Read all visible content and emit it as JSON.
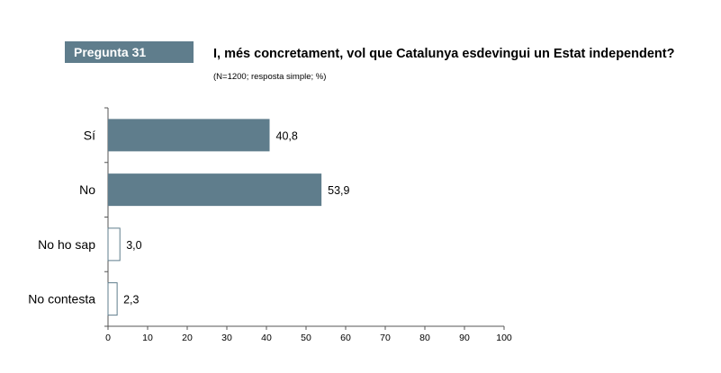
{
  "header": {
    "badge": "Pregunta 31",
    "question": "I, més concretament, vol que Catalunya esdevingui un Estat independent?",
    "note": "(N=1200; resposta simple; %)"
  },
  "colors": {
    "filled_bar": "#5f7d8c",
    "empty_bar_stroke": "#5f7d8c",
    "axis": "#555555"
  },
  "chart_data": {
    "type": "bar",
    "orientation": "horizontal",
    "categories": [
      "Sí",
      "No",
      "No ho sap",
      "No contesta"
    ],
    "values": [
      40.8,
      53.9,
      3.0,
      2.3
    ],
    "value_labels": [
      "40,8",
      "53,9",
      "3,0",
      "2,3"
    ],
    "bar_style": [
      "filled",
      "filled",
      "outline",
      "outline"
    ],
    "xlim": [
      0,
      100
    ],
    "xticks": [
      0,
      10,
      20,
      30,
      40,
      50,
      60,
      70,
      80,
      90,
      100
    ],
    "grid": false
  }
}
